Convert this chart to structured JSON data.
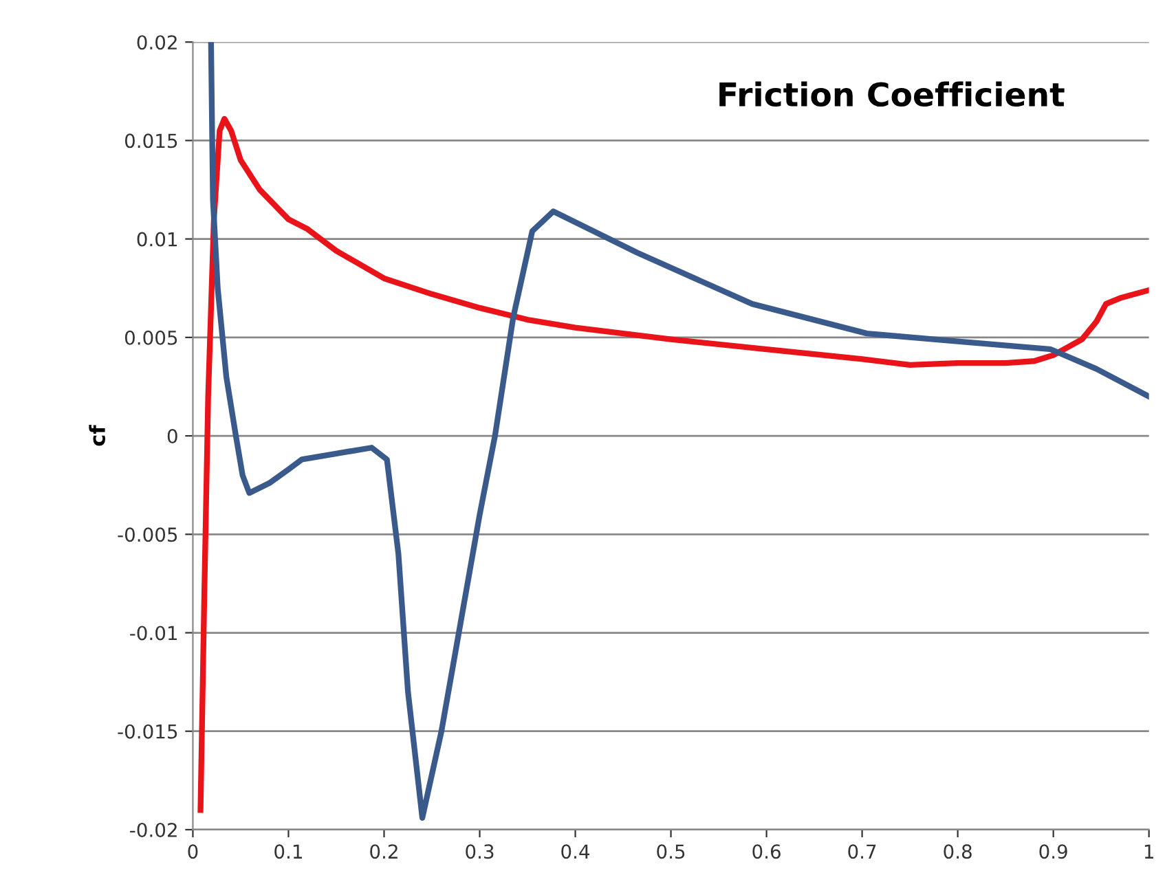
{
  "chart_data": {
    "type": "line",
    "title": "Friction Coefficient",
    "ylabel": "cf",
    "series": [
      {
        "color": "#e8141a",
        "x": [
          0.008,
          0.012,
          0.016,
          0.022,
          0.028,
          0.033,
          0.04,
          0.05,
          0.07,
          0.1,
          0.12,
          0.15,
          0.2,
          0.25,
          0.3,
          0.35,
          0.4,
          0.5,
          0.6,
          0.7,
          0.75,
          0.8,
          0.85,
          0.88,
          0.9,
          0.93,
          0.945,
          0.955,
          0.97,
          1
        ],
        "values": [
          -0.019,
          -0.008,
          0.002,
          0.011,
          0.0155,
          0.0161,
          0.0155,
          0.014,
          0.0125,
          0.011,
          0.0105,
          0.0094,
          0.008,
          0.0072,
          0.0065,
          0.0059,
          0.0055,
          0.0049,
          0.0044,
          0.0039,
          0.0036,
          0.0037,
          0.0037,
          0.0038,
          0.0041,
          0.0049,
          0.0058,
          0.0067,
          0.007,
          0.0074
        ]
      },
      {
        "color": "#3a5a8c",
        "x": [
          0.019,
          0.021,
          0.026,
          0.035,
          0.045,
          0.052,
          0.059,
          0.08,
          0.1,
          0.114,
          0.15,
          0.187,
          0.203,
          0.215,
          0.225,
          0.24,
          0.26,
          0.3,
          0.316,
          0.335,
          0.355,
          0.377,
          0.465,
          0.585,
          0.705,
          0.8,
          0.897,
          0.945,
          1
        ],
        "values": [
          0.02,
          0.012,
          0.0075,
          0.003,
          0,
          -0.002,
          -0.0029,
          -0.0024,
          -0.0017,
          -0.0012,
          -0.0009,
          -0.0006,
          -0.0012,
          -0.006,
          -0.013,
          -0.0194,
          -0.015,
          -0.004,
          0,
          0.006,
          0.0104,
          0.0114,
          0.0093,
          0.0067,
          0.0052,
          0.0048,
          0.0044,
          0.0034,
          0.002
        ]
      }
    ],
    "xlim": [
      0,
      1
    ],
    "xticks": [
      0,
      0.1,
      0.2,
      0.3,
      0.4,
      0.5,
      0.6,
      0.7,
      0.8,
      0.9,
      1
    ],
    "ylim": [
      -0.02,
      0.02
    ],
    "yticks": [
      -0.02,
      -0.015,
      -0.01,
      -0.005,
      0,
      0.005,
      0.01,
      0.015,
      0.02
    ],
    "grid": "y",
    "line_style": "solid",
    "marker": "none"
  }
}
